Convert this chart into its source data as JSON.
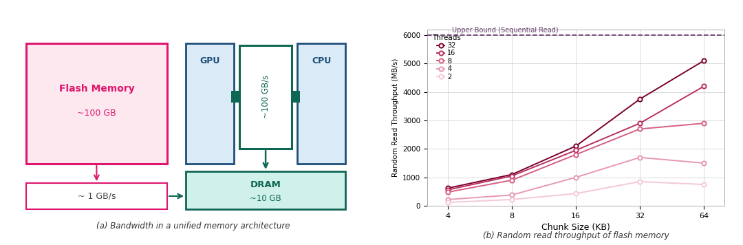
{
  "chart_title_a": "(a) Bandwidth in a unified memory architecture",
  "chart_title_b": "(b) Random read throughput of flash memory",
  "flash_memory_label": "Flash Memory",
  "flash_memory_sub": "~100 GB",
  "gpu_label": "GPU",
  "cpu_label": "CPU",
  "dram_label": "DRAM",
  "dram_sub": "~10 GB",
  "bandwidth_bus": "~100 GB/s",
  "bandwidth_flash": "~ 1 GB/s",
  "flash_fill": "#fde8ef",
  "flash_edge": "#e0156e",
  "flash_text_color": "#e0156e",
  "gpu_fill": "#daeaf7",
  "gpu_edge": "#1f4e79",
  "gpu_text_color": "#1f4e79",
  "cpu_fill": "#daeaf7",
  "cpu_edge": "#1f4e79",
  "cpu_text_color": "#1f4e79",
  "bus_fill": "#ffffff",
  "bus_edge": "#0e6655",
  "bus_text_color": "#0e6655",
  "dram_fill": "#d0f0ea",
  "dram_edge": "#0e6655",
  "dram_text_color": "#0e6655",
  "bw_box_fill": "#ffffff",
  "bw_box_edge": "#e0156e",
  "bw_box_text": "#444444",
  "upper_bound": 6000,
  "upper_bound_label": "Upper Bound (Sequential Read)",
  "upper_bound_color": "#6a3d6e",
  "threads": [
    32,
    16,
    8,
    4,
    2
  ],
  "thread_colors": [
    "#7b0030",
    "#b83060",
    "#d46080",
    "#e898b0",
    "#f4c8d8"
  ],
  "thread_data": {
    "32": [
      620,
      1100,
      2100,
      3750,
      5100
    ],
    "16": [
      560,
      1050,
      1950,
      2900,
      4200
    ],
    "8": [
      480,
      900,
      1800,
      2700,
      2900
    ],
    "4": [
      220,
      380,
      1000,
      1700,
      1500
    ],
    "2": [
      120,
      220,
      430,
      850,
      750
    ]
  },
  "ylabel": "Random Read Throughput (MB/s)",
  "xlabel": "Chunk Size (KB)",
  "ylim": [
    0,
    6200
  ],
  "yticks": [
    0,
    1000,
    2000,
    3000,
    4000,
    5000,
    6000
  ],
  "xtick_labels": [
    "4",
    "8",
    "16",
    "32",
    "64"
  ],
  "xtick_vals": [
    4,
    8,
    16,
    32,
    64
  ],
  "legend_title": "Threads",
  "bg_color": "#ffffff",
  "grid_color": "#cccccc"
}
